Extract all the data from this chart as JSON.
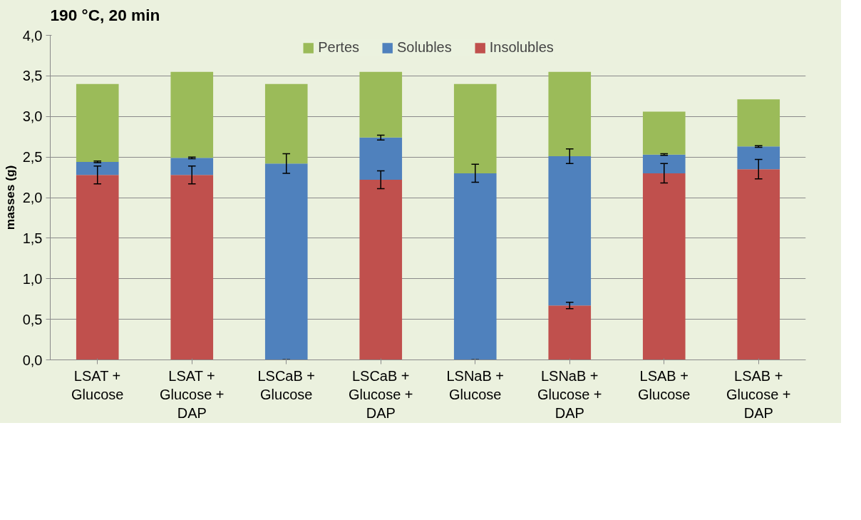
{
  "chart_data": {
    "type": "bar",
    "title": "190 °C, 20 min",
    "ylabel": "masses (g)",
    "stacked": true,
    "legend": "top",
    "grid": "y",
    "categories": [
      "LSAT +\nGlucose",
      "LSAT +\nGlucose +\nDAP",
      "LSCaB +\nGlucose",
      "LSCaB +\nGlucose +\nDAP",
      "LSNaB +\nGlucose",
      "LSNaB +\nGlucose +\nDAP",
      "LSAB +\nGlucose",
      "LSAB +\nGlucose +\nDAP"
    ],
    "series": [
      {
        "name": "Insolubles",
        "color": "#c0504d",
        "values": [
          2.28,
          2.28,
          0,
          2.22,
          0,
          0.67,
          2.3,
          2.35
        ],
        "errors": [
          0.11,
          0.11,
          0,
          0.11,
          0,
          0.04,
          0.12,
          0.12
        ]
      },
      {
        "name": "Solubles",
        "color": "#4f81bd",
        "values": [
          0.16,
          0.21,
          2.42,
          0.52,
          2.3,
          1.84,
          0.23,
          0.28
        ],
        "errors": [
          0.01,
          0.01,
          0.12,
          0.03,
          0.11,
          0.09,
          0.01,
          0.01
        ]
      },
      {
        "name": "Pertes",
        "color": "#9bbb59",
        "values": [
          0.96,
          1.06,
          0.98,
          0.81,
          1.1,
          1.04,
          0.53,
          0.58
        ]
      }
    ],
    "ylim": [
      0,
      4
    ],
    "yticks": [
      {
        "value": 0,
        "label": "0,0"
      },
      {
        "value": 0.5,
        "label": "0,5"
      },
      {
        "value": 1,
        "label": "1,0"
      },
      {
        "value": 1.5,
        "label": "1,5"
      },
      {
        "value": 2,
        "label": "2,0"
      },
      {
        "value": 2.5,
        "label": "2,5"
      },
      {
        "value": 3,
        "label": "3,0"
      },
      {
        "value": 3.5,
        "label": "3,5"
      },
      {
        "value": 4,
        "label": "4,0"
      }
    ]
  }
}
